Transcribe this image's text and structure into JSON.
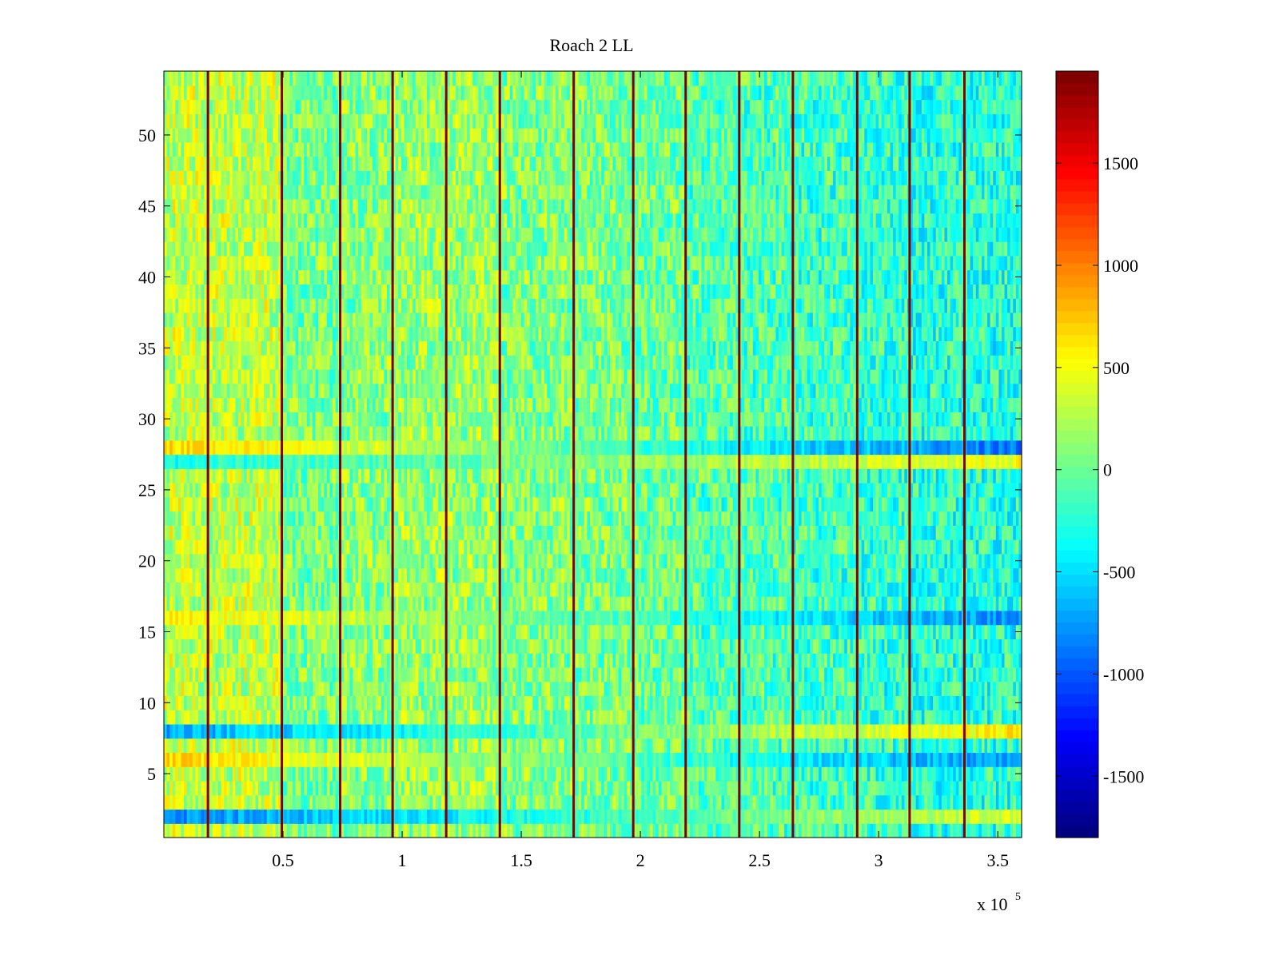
{
  "chart_data": {
    "type": "heatmap",
    "title": "Roach 2 LL",
    "xlabel": "",
    "ylabel": "",
    "x_exponent_label": "x 10",
    "x_exponent": "5",
    "xlim": [
      0,
      360000
    ],
    "ylim": [
      0.5,
      54.5
    ],
    "rows": 54,
    "x_ticks": [
      {
        "value": 50000,
        "label": "0.5"
      },
      {
        "value": 100000,
        "label": "1"
      },
      {
        "value": 150000,
        "label": "1.5"
      },
      {
        "value": 200000,
        "label": "2"
      },
      {
        "value": 250000,
        "label": "2.5"
      },
      {
        "value": 300000,
        "label": "3"
      },
      {
        "value": 350000,
        "label": "3.5"
      }
    ],
    "y_ticks": [
      {
        "value": 5,
        "label": "5"
      },
      {
        "value": 10,
        "label": "10"
      },
      {
        "value": 15,
        "label": "15"
      },
      {
        "value": 20,
        "label": "20"
      },
      {
        "value": 25,
        "label": "25"
      },
      {
        "value": 30,
        "label": "30"
      },
      {
        "value": 35,
        "label": "35"
      },
      {
        "value": 40,
        "label": "40"
      },
      {
        "value": 45,
        "label": "45"
      },
      {
        "value": 50,
        "label": "50"
      }
    ],
    "colorbar": {
      "colormap": "jet",
      "range": [
        -1800,
        1950
      ],
      "ticks": [
        {
          "value": 1500,
          "label": "1500"
        },
        {
          "value": 1000,
          "label": "1000"
        },
        {
          "value": 500,
          "label": "500"
        },
        {
          "value": 0,
          "label": "0"
        },
        {
          "value": -500,
          "label": "-500"
        },
        {
          "value": -1000,
          "label": "-1000"
        },
        {
          "value": -1500,
          "label": "-1500"
        }
      ]
    },
    "trigger_lines_x": [
      18500,
      49500,
      74000,
      96000,
      118500,
      141000,
      172000,
      197000,
      219000,
      241500,
      264000,
      291000,
      313000,
      336000
    ],
    "trigger_line_value": 1900,
    "segments": [
      {
        "x_start": 0,
        "x_end": 18500,
        "base": 300
      },
      {
        "x_start": 18500,
        "x_end": 49500,
        "base": 300
      },
      {
        "x_start": 49500,
        "x_end": 74000,
        "base": 50
      },
      {
        "x_start": 74000,
        "x_end": 96000,
        "base": 100
      },
      {
        "x_start": 96000,
        "x_end": 118500,
        "base": 150
      },
      {
        "x_start": 118500,
        "x_end": 141000,
        "base": 150
      },
      {
        "x_start": 141000,
        "x_end": 172000,
        "base": 80
      },
      {
        "x_start": 172000,
        "x_end": 197000,
        "base": 50
      },
      {
        "x_start": 197000,
        "x_end": 219000,
        "base": 0
      },
      {
        "x_start": 219000,
        "x_end": 241500,
        "base": -80
      },
      {
        "x_start": 241500,
        "x_end": 264000,
        "base": -100
      },
      {
        "x_start": 264000,
        "x_end": 291000,
        "base": -150
      },
      {
        "x_start": 291000,
        "x_end": 313000,
        "base": -200
      },
      {
        "x_start": 313000,
        "x_end": 336000,
        "base": -250
      },
      {
        "x_start": 336000,
        "x_end": 360000,
        "base": -250
      }
    ],
    "row_bands": [
      {
        "row": 2,
        "early": -800,
        "late": 400
      },
      {
        "row": 6,
        "early": 700,
        "late": -800
      },
      {
        "row": 8,
        "early": -700,
        "late": 600
      },
      {
        "row": 16,
        "early": 600,
        "late": -800
      },
      {
        "row": 27,
        "early": -300,
        "late": 500
      },
      {
        "row": 28,
        "early": 700,
        "late": -900
      }
    ],
    "noise_amplitude": 380,
    "grid": false
  }
}
